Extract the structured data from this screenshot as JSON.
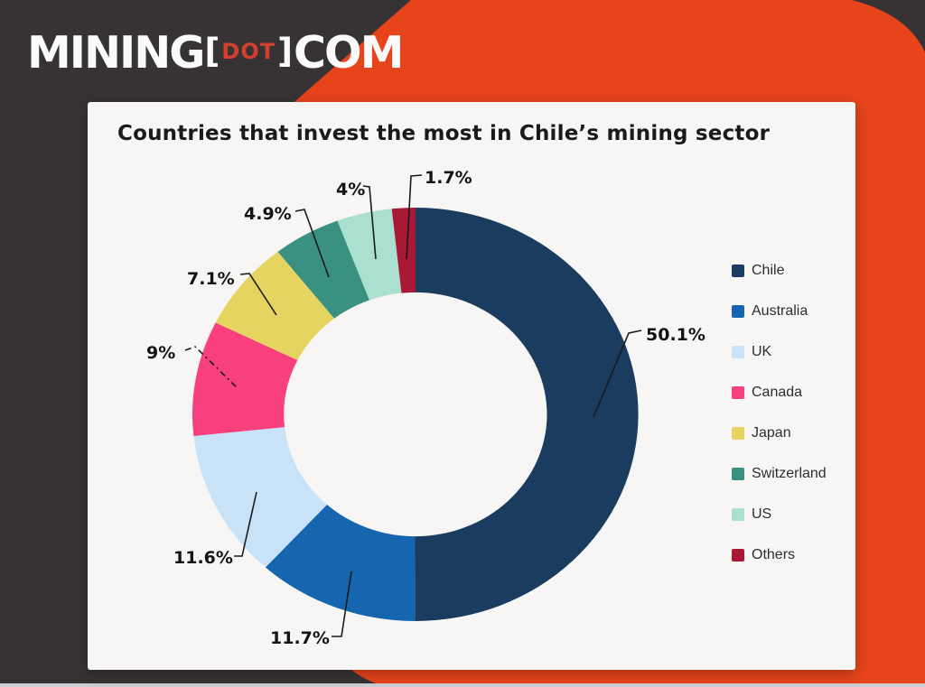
{
  "logo": {
    "mining": "MINING",
    "bracket_open": "[",
    "dot": "DOT",
    "bracket_close": "]",
    "com": "COM"
  },
  "chart_data": {
    "type": "pie",
    "variant": "donut",
    "title": "Countries that invest the most in Chile’s mining sector",
    "legend_position": "right",
    "start_angle_deg": 0,
    "direction": "clockwise",
    "slices": [
      {
        "name": "Chile",
        "value": 50.1,
        "label": "50.1%",
        "color": "#1A3C5F"
      },
      {
        "name": "Australia",
        "value": 11.7,
        "label": "11.7%",
        "color": "#1566AE"
      },
      {
        "name": "UK",
        "value": 11.6,
        "label": "11.6%",
        "color": "#C8E2F7"
      },
      {
        "name": "Canada",
        "value": 9,
        "label": "9%",
        "color": "#F7407D"
      },
      {
        "name": "Japan",
        "value": 7.1,
        "label": "7.1%",
        "color": "#E5D45F"
      },
      {
        "name": "Switzerland",
        "value": 4.9,
        "label": "4.9%",
        "color": "#3A9181"
      },
      {
        "name": "US",
        "value": 4,
        "label": "4%",
        "color": "#ABDFD0"
      },
      {
        "name": "Others",
        "value": 1.7,
        "label": "1.7%",
        "color": "#A81936"
      }
    ]
  },
  "colors": {
    "background": "#373334",
    "accent_orange": "#E8441C",
    "card": "#F7F6F5",
    "logo_dot": "#D2402B",
    "bottom_strip": "#CBCED3",
    "text": "#1A1A1A",
    "leader_line": "#1A1A1A"
  }
}
